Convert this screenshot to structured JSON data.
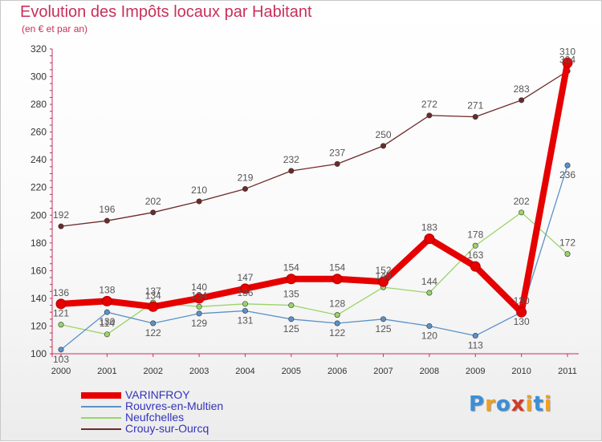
{
  "header": {
    "title": "Evolution des Impôts locaux par Habitant",
    "subtitle": "(en € et par an)"
  },
  "logo": {
    "text": "Proxiti",
    "letters": [
      "P",
      "r",
      "o",
      "x",
      "i",
      "t",
      "i"
    ],
    "colors": [
      "#3a8fd8",
      "#f0a020",
      "#3a8fd8",
      "#d23c28",
      "#f0a020",
      "#3a8fd8",
      "#f0a020"
    ]
  },
  "chart_data": {
    "type": "line",
    "title": "Evolution des Impôts locaux par Habitant",
    "subtitle": "(en € et par an)",
    "xlabel": "",
    "ylabel": "",
    "x": [
      "2000",
      "2001",
      "2002",
      "2003",
      "2004",
      "2005",
      "2006",
      "2007",
      "2008",
      "2009",
      "2010",
      "2011"
    ],
    "ylim": [
      100,
      320
    ],
    "yticks": [
      100,
      120,
      140,
      160,
      180,
      200,
      220,
      240,
      260,
      280,
      300,
      320
    ],
    "grid": false,
    "legend_position": "bottom-left",
    "series": [
      {
        "name": "VARINFROY",
        "color": "#e60000",
        "values": [
          136,
          138,
          134,
          140,
          147,
          154,
          154,
          152,
          183,
          163,
          130,
          310
        ]
      },
      {
        "name": "Rouvres-en-Multien",
        "color": "#5b92c9",
        "values": [
          103,
          130,
          122,
          129,
          131,
          125,
          122,
          125,
          120,
          113,
          130,
          236
        ]
      },
      {
        "name": "Neufchelles",
        "color": "#9ad468",
        "values": [
          121,
          114,
          137,
          134,
          136,
          135,
          128,
          148,
          144,
          178,
          202,
          172
        ]
      },
      {
        "name": "Crouy-sur-Ourcq",
        "color": "#6e2a2a",
        "values": [
          192,
          196,
          202,
          210,
          219,
          232,
          237,
          250,
          272,
          271,
          283,
          304
        ]
      }
    ]
  }
}
